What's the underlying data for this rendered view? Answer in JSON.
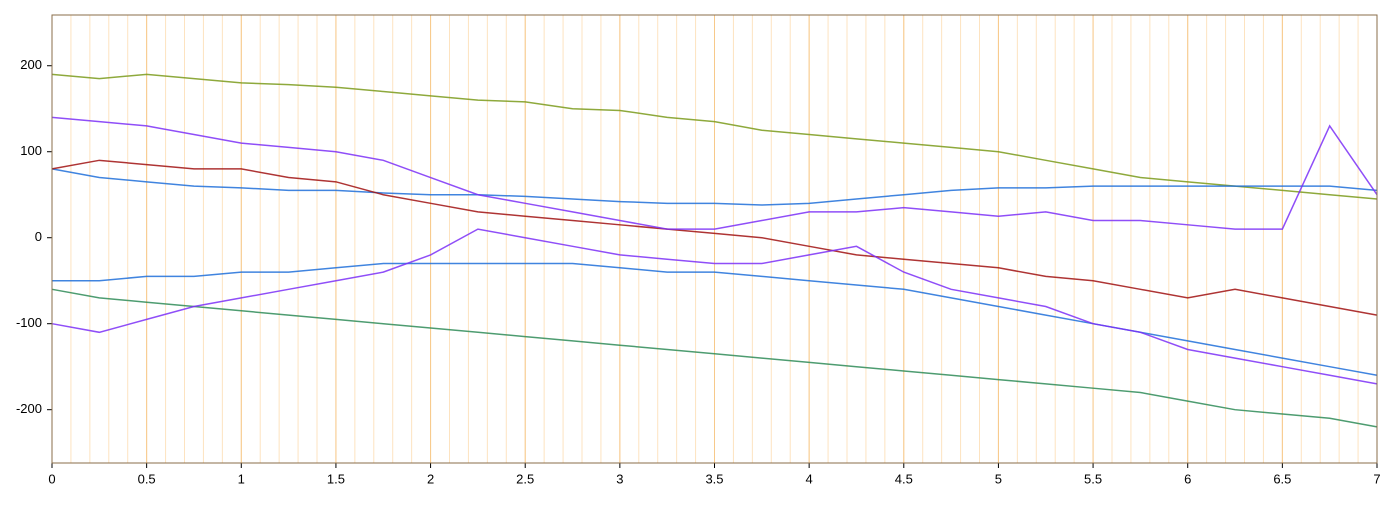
{
  "chart_data": {
    "type": "line",
    "x": [
      0,
      0.25,
      0.5,
      0.75,
      1,
      1.25,
      1.5,
      1.75,
      2,
      2.25,
      2.5,
      2.75,
      3,
      3.25,
      3.5,
      3.75,
      4,
      4.25,
      4.5,
      4.75,
      5,
      5.25,
      5.5,
      5.75,
      6,
      6.25,
      6.5,
      6.75,
      7
    ],
    "series": [
      {
        "color": "#7a9a1a",
        "values": [
          190,
          185,
          190,
          185,
          180,
          178,
          175,
          170,
          165,
          160,
          158,
          150,
          148,
          140,
          135,
          125,
          120,
          115,
          110,
          105,
          100,
          90,
          80,
          70,
          65,
          60,
          55,
          50,
          45
        ]
      },
      {
        "color": "#2e8b57",
        "values": [
          -60,
          -70,
          -75,
          -80,
          -85,
          -90,
          -95,
          -100,
          -105,
          -110,
          -115,
          -120,
          -125,
          -130,
          -135,
          -140,
          -145,
          -150,
          -155,
          -160,
          -165,
          -170,
          -175,
          -180,
          -190,
          -200,
          -205,
          -210,
          -220
        ]
      },
      {
        "color": "#1e6fd9",
        "values": [
          80,
          70,
          65,
          60,
          58,
          55,
          55,
          52,
          50,
          50,
          48,
          45,
          42,
          40,
          40,
          38,
          40,
          45,
          50,
          55,
          58,
          58,
          60,
          60,
          60,
          60,
          60,
          60,
          55
        ]
      },
      {
        "color": "#1e6fd9",
        "values": [
          -50,
          -50,
          -45,
          -45,
          -40,
          -40,
          -35,
          -30,
          -30,
          -30,
          -30,
          -30,
          -35,
          -40,
          -40,
          -45,
          -50,
          -55,
          -60,
          -70,
          -80,
          -90,
          -100,
          -110,
          -120,
          -130,
          -140,
          -150,
          -160
        ]
      },
      {
        "color": "#a01010",
        "values": [
          80,
          90,
          85,
          80,
          80,
          70,
          65,
          50,
          40,
          30,
          25,
          20,
          15,
          10,
          5,
          0,
          -10,
          -20,
          -25,
          -30,
          -35,
          -45,
          -50,
          -60,
          -70,
          -60,
          -70,
          -80,
          -90
        ]
      },
      {
        "color": "#7b2ff7",
        "values": [
          140,
          135,
          130,
          120,
          110,
          105,
          100,
          90,
          70,
          50,
          40,
          30,
          20,
          10,
          10,
          20,
          30,
          30,
          35,
          30,
          25,
          30,
          20,
          20,
          15,
          10,
          10,
          130,
          50
        ]
      },
      {
        "color": "#7b2ff7",
        "values": [
          -100,
          -110,
          -95,
          -80,
          -70,
          -60,
          -50,
          -40,
          -20,
          10,
          0,
          -10,
          -20,
          -25,
          -30,
          -30,
          -20,
          -10,
          -40,
          -60,
          -70,
          -80,
          -100,
          -110,
          -130,
          -140,
          -150,
          -160,
          -170
        ]
      }
    ],
    "xlim": [
      0,
      7
    ],
    "xticks": [
      0,
      0.5,
      1,
      1.5,
      2,
      2.5,
      3,
      3.5,
      4,
      4.5,
      5,
      5.5,
      6,
      6.5,
      7
    ],
    "ylim": [
      -262,
      259
    ],
    "yticks": [
      -200,
      -100,
      0,
      100,
      200
    ],
    "grid": true,
    "minor_grid_step": 0.1
  }
}
